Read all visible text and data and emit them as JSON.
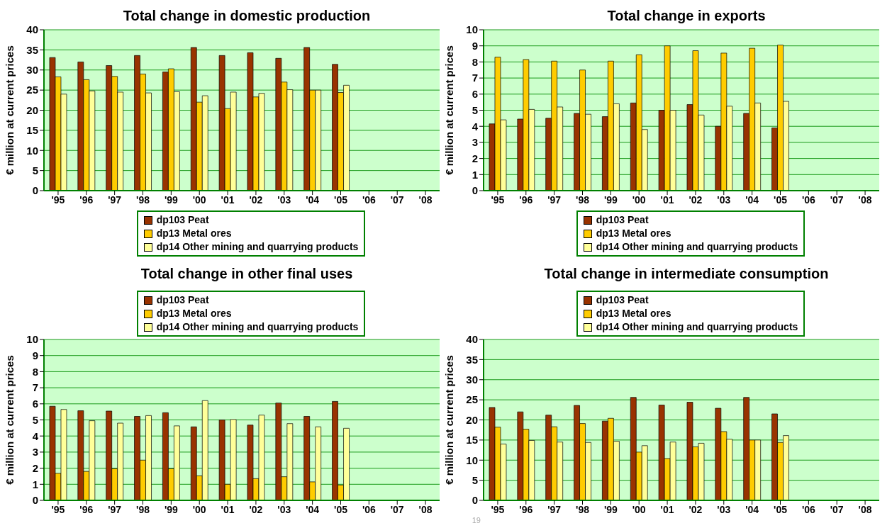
{
  "chart_data": [
    {
      "type": "bar",
      "title": "Total change in domestic production",
      "ylabel": "€ million at current prices",
      "categories": [
        "'95",
        "'96",
        "'97",
        "'98",
        "'99",
        "'00",
        "'01",
        "'02",
        "'03",
        "'04",
        "'05",
        "'06",
        "'07",
        "'08"
      ],
      "ylim": [
        0,
        40
      ],
      "yticks": [
        0,
        5,
        10,
        15,
        20,
        25,
        30,
        35,
        40
      ],
      "grid": "y",
      "legend": "bottom",
      "series": [
        {
          "name": "dp103 Peat",
          "color": "#993300",
          "values": [
            33.1,
            32,
            31.1,
            33.6,
            29.5,
            35.6,
            33.6,
            34.3,
            32.9,
            35.6,
            31.4,
            null,
            null,
            null
          ]
        },
        {
          "name": "dp13 Metal ores",
          "color": "#ffcc00",
          "values": [
            28.3,
            27.6,
            28.4,
            29,
            30.3,
            22,
            20.4,
            23.3,
            27,
            25,
            24.4,
            null,
            null,
            null
          ]
        },
        {
          "name": "dp14 Other mining and quarrying products",
          "color": "#ffff99",
          "values": [
            24,
            24.8,
            24.5,
            24.3,
            24.6,
            23.6,
            24.5,
            24.2,
            25.1,
            25,
            26.2,
            null,
            null,
            null
          ]
        }
      ]
    },
    {
      "type": "bar",
      "title": "Total change in exports",
      "ylabel": "€ million at current prices",
      "categories": [
        "'95",
        "'96",
        "'97",
        "'98",
        "'99",
        "'00",
        "'01",
        "'02",
        "'03",
        "'04",
        "'05",
        "'06",
        "'07",
        "'08"
      ],
      "ylim": [
        0,
        10
      ],
      "yticks": [
        0,
        1,
        2,
        3,
        4,
        5,
        6,
        7,
        8,
        9,
        10
      ],
      "grid": "y",
      "legend": "bottom",
      "series": [
        {
          "name": "dp103 Peat",
          "color": "#993300",
          "values": [
            4.15,
            4.45,
            4.5,
            4.8,
            4.6,
            5.45,
            5,
            5.35,
            4,
            4.8,
            3.9,
            null,
            null,
            null
          ]
        },
        {
          "name": "dp13 Metal ores",
          "color": "#ffcc00",
          "values": [
            8.3,
            8.15,
            8.05,
            7.5,
            8.05,
            8.45,
            9,
            8.7,
            8.55,
            8.85,
            9.05,
            null,
            null,
            null
          ]
        },
        {
          "name": "dp14 Other mining and quarrying products",
          "color": "#ffff99",
          "values": [
            4.4,
            5.05,
            5.2,
            4.75,
            5.4,
            3.8,
            5,
            4.7,
            5.25,
            5.45,
            5.55,
            null,
            null,
            null
          ]
        }
      ]
    },
    {
      "type": "bar",
      "title": "Total change in other final uses",
      "ylabel": "€ million at current prices",
      "categories": [
        "'95",
        "'96",
        "'97",
        "'98",
        "'99",
        "'00",
        "'01",
        "'02",
        "'03",
        "'04",
        "'05",
        "'06",
        "'07",
        "'08"
      ],
      "ylim": [
        0,
        10
      ],
      "yticks": [
        0,
        1,
        2,
        3,
        4,
        5,
        6,
        7,
        8,
        9,
        10
      ],
      "grid": "y",
      "legend": "top",
      "annotations": [
        "19"
      ],
      "series": [
        {
          "name": "dp103 Peat",
          "color": "#993300",
          "values": [
            5.85,
            5.57,
            5.55,
            5.22,
            5.45,
            4.57,
            5,
            4.68,
            6.05,
            5.22,
            6.15,
            null,
            null,
            null
          ]
        },
        {
          "name": "dp13 Metal ores",
          "color": "#ffcc00",
          "values": [
            1.68,
            1.8,
            1.97,
            2.5,
            1.97,
            1.53,
            1,
            1.35,
            1.47,
            1.15,
            0.95,
            null,
            null,
            null
          ]
        },
        {
          "name": "dp14 Other mining and quarrying products",
          "color": "#ffff99",
          "values": [
            5.65,
            4.95,
            4.8,
            5.27,
            4.63,
            6.2,
            5.03,
            5.3,
            4.77,
            4.57,
            4.48,
            null,
            null,
            null
          ]
        }
      ]
    },
    {
      "type": "bar",
      "title": "Total change in intermediate consumption",
      "ylabel": "€ million at current prices",
      "categories": [
        "'95",
        "'96",
        "'97",
        "'98",
        "'99",
        "'00",
        "'01",
        "'02",
        "'03",
        "'04",
        "'05",
        "'06",
        "'07",
        "'08"
      ],
      "ylim": [
        0,
        40
      ],
      "yticks": [
        0,
        5,
        10,
        15,
        20,
        25,
        30,
        35,
        40
      ],
      "grid": "y",
      "legend": "top",
      "series": [
        {
          "name": "dp103 Peat",
          "color": "#993300",
          "values": [
            23.1,
            22,
            21.2,
            23.6,
            19.7,
            25.6,
            23.7,
            24.4,
            22.9,
            25.6,
            21.5,
            null,
            null,
            null
          ]
        },
        {
          "name": "dp13 Metal ores",
          "color": "#ffcc00",
          "values": [
            18.2,
            17.7,
            18.3,
            19.1,
            20.4,
            12,
            10.4,
            13.3,
            17.1,
            15,
            14.4,
            null,
            null,
            null
          ]
        },
        {
          "name": "dp14 Other mining and quarrying products",
          "color": "#ffff99",
          "values": [
            14,
            14.9,
            14.5,
            14.4,
            14.7,
            13.6,
            14.5,
            14.2,
            15.2,
            15,
            16.1,
            null,
            null,
            null
          ]
        }
      ]
    }
  ]
}
